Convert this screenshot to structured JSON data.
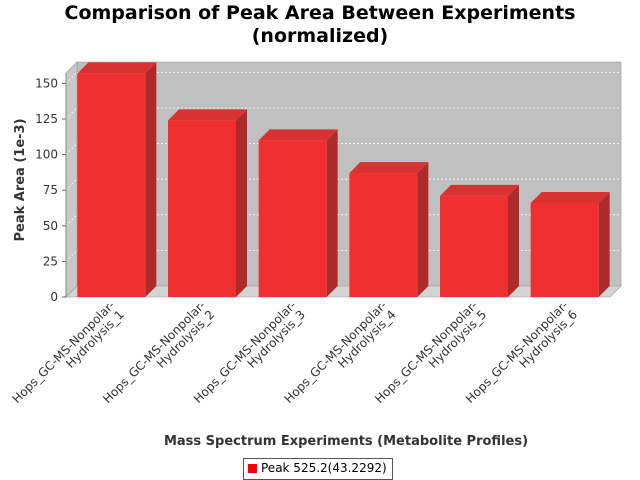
{
  "chart_data": {
    "type": "bar",
    "title_line1": "Comparison of Peak Area Between Experiments",
    "title_line2": "(normalized)",
    "xlabel": "Mass Spectrum Experiments (Metabolite Profiles)",
    "ylabel": "Peak Area (1e-3)",
    "categories": [
      [
        "Hops_GC-MS-Nonpolar-",
        "Hydrolysis_1"
      ],
      [
        "Hops_GC-MS-Nonpolar-",
        "Hydrolysis_2"
      ],
      [
        "Hops_GC-MS-Nonpolar-",
        "Hydrolysis_3"
      ],
      [
        "Hops_GC-MS-Nonpolar-",
        "Hydrolysis_4"
      ],
      [
        "Hops_GC-MS-Nonpolar-",
        "Hydrolysis_5"
      ],
      [
        "Hops_GC-MS-Nonpolar-",
        "Hydrolysis_6"
      ]
    ],
    "series": [
      {
        "name": "Peak 525.2(43.2292)",
        "values": [
          157,
          124,
          110,
          87,
          71,
          66
        ]
      }
    ],
    "ylim": [
      0,
      165
    ],
    "yticks": [
      0,
      25,
      50,
      75,
      100,
      125,
      150
    ],
    "grid": true,
    "legend_position": "bottom",
    "colors": {
      "bar_front": "#f03030",
      "bar_top": "#d83232",
      "bar_side": "#b02a2a",
      "plot_bg": "#c0c0c0",
      "wall_side": "#c8c8c8",
      "floor": "#d4d4d4",
      "legend_swatch": "#ff0000"
    }
  }
}
